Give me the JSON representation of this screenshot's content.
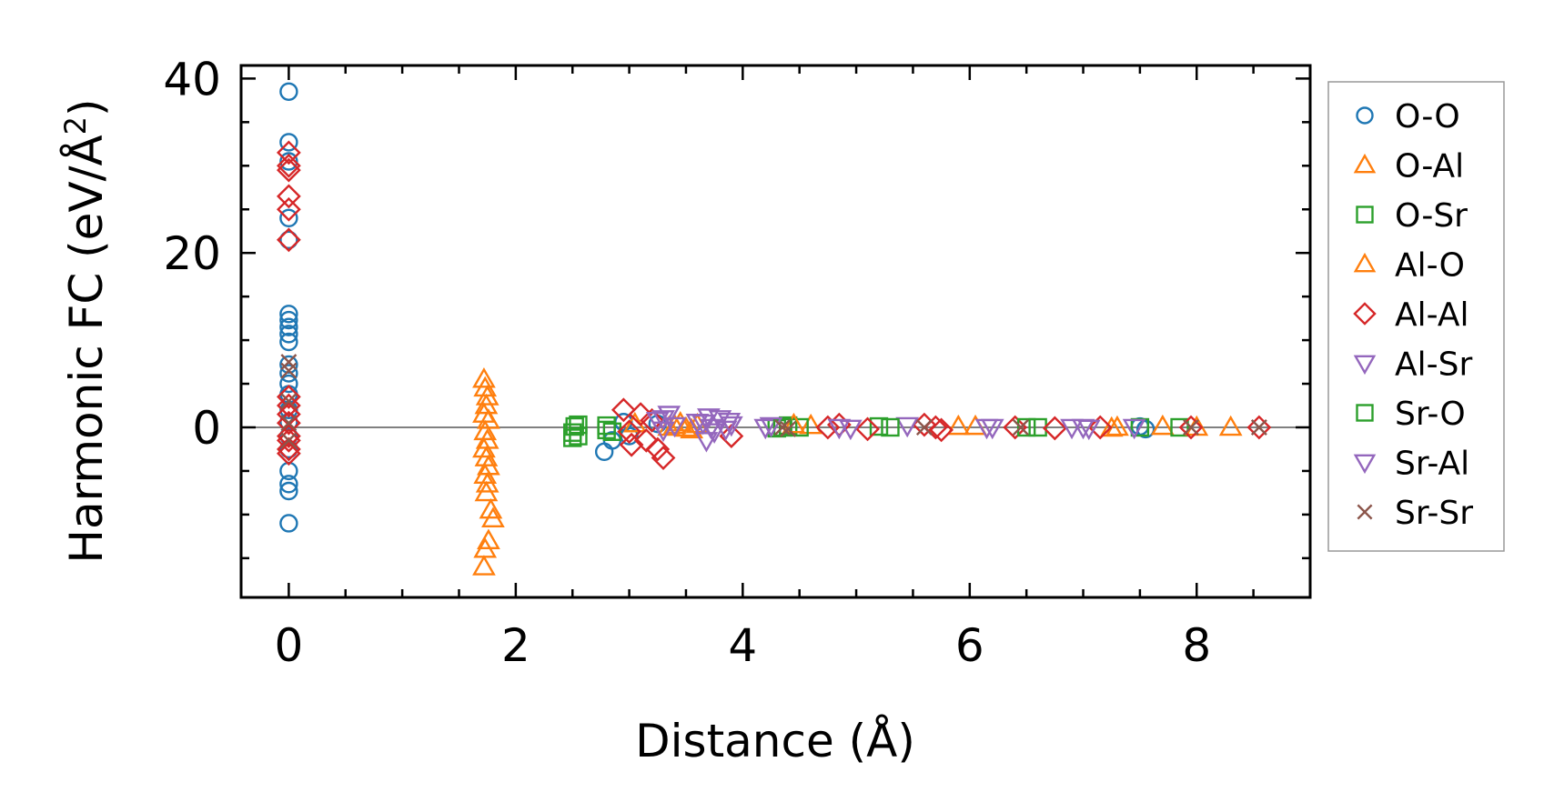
{
  "chart_data": {
    "type": "scatter",
    "title": "",
    "xlabel": "Distance (Å)",
    "ylabel": "Harmonic FC (eV/Å²)",
    "ylabel_parts": {
      "main": "Harmonic FC (eV/Å",
      "sup": "2",
      "close": ")"
    },
    "xlim": [
      -0.42,
      9.0
    ],
    "ylim": [
      -19.5,
      41.5
    ],
    "xticks": [
      0,
      2,
      4,
      6,
      8
    ],
    "xtick_labels": [
      "0",
      "2",
      "4",
      "6",
      "8"
    ],
    "yticks": [
      0,
      20,
      40
    ],
    "ytick_labels": [
      "0",
      "20",
      "40"
    ],
    "grid": false,
    "zero_line": true,
    "legend_position": "outside-right",
    "series": [
      {
        "name": "O-O",
        "marker": "circle",
        "color": "#1f77b4",
        "points": [
          [
            0,
            38.5
          ],
          [
            0,
            32.7
          ],
          [
            0,
            30.5
          ],
          [
            0,
            24.0
          ],
          [
            0,
            21.5
          ],
          [
            0,
            13.0
          ],
          [
            0,
            12.3
          ],
          [
            0,
            11.5
          ],
          [
            0,
            10.7
          ],
          [
            0,
            9.8
          ],
          [
            0,
            7.2
          ],
          [
            0,
            6.2
          ],
          [
            0,
            5.0
          ],
          [
            0,
            3.8
          ],
          [
            0,
            2.0
          ],
          [
            0,
            0.6
          ],
          [
            0,
            -1.0
          ],
          [
            0,
            -2.5
          ],
          [
            0,
            -5.0
          ],
          [
            0,
            -6.5
          ],
          [
            0,
            -7.3
          ],
          [
            0,
            -11.0
          ],
          [
            2.78,
            -2.8
          ],
          [
            2.85,
            -1.5
          ],
          [
            2.95,
            0.6
          ],
          [
            3.0,
            -1.0
          ],
          [
            3.25,
            0.4
          ],
          [
            7.5,
            0.1
          ],
          [
            7.55,
            -0.2
          ]
        ]
      },
      {
        "name": "O-Al",
        "marker": "triangle-up",
        "color": "#ff7f0e",
        "points": [
          [
            1.72,
            5.5
          ],
          [
            1.73,
            4.5
          ],
          [
            1.75,
            3.5
          ],
          [
            1.74,
            2.5
          ],
          [
            1.72,
            1.5
          ],
          [
            1.76,
            0.8
          ],
          [
            1.73,
            -0.5
          ],
          [
            1.75,
            -1.5
          ],
          [
            1.72,
            -2.5
          ],
          [
            1.74,
            -3.5
          ],
          [
            1.76,
            -4.5
          ],
          [
            1.73,
            -5.5
          ],
          [
            1.75,
            -6.5
          ],
          [
            1.74,
            -7.5
          ],
          [
            1.78,
            -9.5
          ],
          [
            1.8,
            -10.5
          ],
          [
            1.76,
            -13.0
          ],
          [
            1.73,
            -14.0
          ],
          [
            1.72,
            -16.0
          ],
          [
            3.4,
            0.2
          ],
          [
            3.5,
            -0.1
          ],
          [
            3.6,
            0.3
          ],
          [
            4.6,
            0.2
          ],
          [
            5.9,
            0.1
          ],
          [
            7.3,
            0.0
          ],
          [
            7.7,
            0.1
          ],
          [
            8.3,
            0.0
          ]
        ]
      },
      {
        "name": "O-Sr",
        "marker": "square",
        "color": "#2ca02c",
        "points": [
          [
            2.5,
            -0.6
          ],
          [
            2.52,
            0.1
          ],
          [
            2.55,
            -1.0
          ],
          [
            2.8,
            0.2
          ],
          [
            2.85,
            -0.5
          ],
          [
            4.3,
            -0.1
          ],
          [
            4.4,
            0.2
          ],
          [
            4.5,
            0.0
          ],
          [
            5.2,
            0.1
          ],
          [
            6.6,
            0.0
          ],
          [
            7.5,
            0.0
          ],
          [
            7.85,
            0.0
          ]
        ]
      },
      {
        "name": "Al-O",
        "marker": "triangle-up",
        "color": "#ff7f0e",
        "points": [
          [
            3.05,
            0.4
          ],
          [
            3.35,
            0.0
          ],
          [
            3.45,
            0.5
          ],
          [
            3.55,
            -0.3
          ],
          [
            4.45,
            0.3
          ],
          [
            6.05,
            0.1
          ],
          [
            7.25,
            -0.1
          ],
          [
            8.0,
            0.0
          ]
        ]
      },
      {
        "name": "Al-Al",
        "marker": "diamond",
        "color": "#d62728",
        "points": [
          [
            0,
            31.5
          ],
          [
            0,
            30.0
          ],
          [
            0,
            29.5
          ],
          [
            0,
            26.5
          ],
          [
            0,
            25.0
          ],
          [
            0,
            21.5
          ],
          [
            0,
            3.5
          ],
          [
            0,
            2.5
          ],
          [
            0,
            1.5
          ],
          [
            0,
            0.5
          ],
          [
            0,
            -1.0
          ],
          [
            0,
            -1.5
          ],
          [
            0,
            -2.5
          ],
          [
            0,
            -3.0
          ],
          [
            2.95,
            2.0
          ],
          [
            3.0,
            -0.5
          ],
          [
            3.02,
            -2.0
          ],
          [
            3.1,
            1.5
          ],
          [
            3.15,
            -1.5
          ],
          [
            3.2,
            0.8
          ],
          [
            3.25,
            -2.5
          ],
          [
            3.3,
            -3.5
          ],
          [
            3.9,
            -1.0
          ],
          [
            4.75,
            0.0
          ],
          [
            4.85,
            0.3
          ],
          [
            5.1,
            -0.2
          ],
          [
            5.6,
            0.3
          ],
          [
            5.7,
            0.0
          ],
          [
            5.75,
            -0.3
          ],
          [
            6.4,
            0.0
          ],
          [
            6.75,
            -0.1
          ],
          [
            7.15,
            0.0
          ],
          [
            7.95,
            0.0
          ],
          [
            8.55,
            0.0
          ]
        ]
      },
      {
        "name": "Al-Sr",
        "marker": "triangle-down",
        "color": "#9467bd",
        "points": [
          [
            3.25,
            0.8
          ],
          [
            3.3,
            -0.3
          ],
          [
            3.35,
            1.5
          ],
          [
            3.4,
            0.2
          ],
          [
            3.65,
            0.5
          ],
          [
            3.68,
            -1.5
          ],
          [
            3.7,
            1.2
          ],
          [
            3.75,
            -0.5
          ],
          [
            3.8,
            1.0
          ],
          [
            3.85,
            -0.2
          ],
          [
            3.9,
            0.3
          ],
          [
            4.2,
            0.0
          ],
          [
            4.85,
            0.0
          ],
          [
            5.45,
            0.2
          ],
          [
            6.15,
            0.0
          ],
          [
            6.9,
            0.0
          ],
          [
            7.05,
            -0.1
          ],
          [
            7.45,
            0.0
          ]
        ]
      },
      {
        "name": "Sr-O",
        "marker": "square",
        "color": "#2ca02c",
        "points": [
          [
            2.5,
            -1.2
          ],
          [
            2.55,
            0.3
          ],
          [
            2.8,
            -0.3
          ],
          [
            4.35,
            0.0
          ],
          [
            5.3,
            0.0
          ],
          [
            6.5,
            0.0
          ]
        ]
      },
      {
        "name": "Sr-Al",
        "marker": "triangle-down",
        "color": "#9467bd",
        "points": [
          [
            3.3,
            1.0
          ],
          [
            3.6,
            0.6
          ],
          [
            3.72,
            0.0
          ],
          [
            3.88,
            0.7
          ],
          [
            4.25,
            0.2
          ],
          [
            4.95,
            -0.1
          ],
          [
            6.2,
            0.0
          ],
          [
            7.0,
            0.0
          ]
        ]
      },
      {
        "name": "Sr-Sr",
        "marker": "x",
        "color": "#8c564b",
        "points": [
          [
            0,
            7.5
          ],
          [
            0,
            6.5
          ],
          [
            0,
            3.0
          ],
          [
            0,
            0.5
          ],
          [
            0,
            -1.5
          ],
          [
            4.35,
            0.0
          ],
          [
            4.4,
            -0.2
          ],
          [
            5.6,
            0.0
          ],
          [
            6.45,
            0.0
          ],
          [
            7.95,
            0.0
          ],
          [
            8.55,
            0.0
          ]
        ]
      }
    ]
  }
}
